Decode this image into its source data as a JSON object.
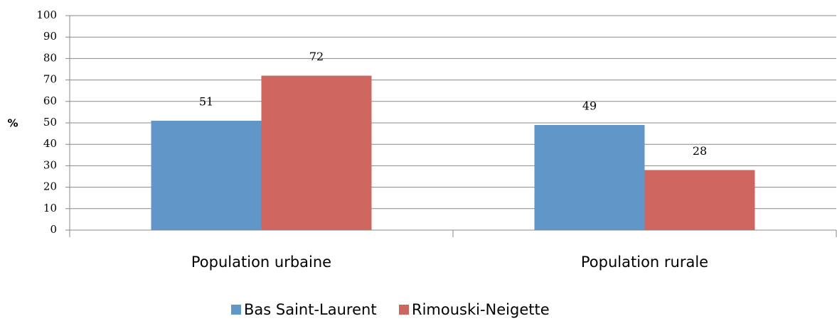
{
  "chart_data": {
    "type": "bar",
    "y_label": "%",
    "categories": [
      "Population urbaine",
      "Population rurale"
    ],
    "series": [
      {
        "name": "Bas Saint-Laurent",
        "color": "#6096c8",
        "values": [
          51,
          49
        ]
      },
      {
        "name": "Rimouski-Neigette",
        "color": "#cd665f",
        "values": [
          72,
          28
        ]
      }
    ],
    "ylim": [
      0,
      100
    ],
    "yticks": [
      0,
      10,
      20,
      30,
      40,
      50,
      60,
      70,
      80,
      90,
      100
    ],
    "grid": true,
    "legend": "bottom"
  }
}
